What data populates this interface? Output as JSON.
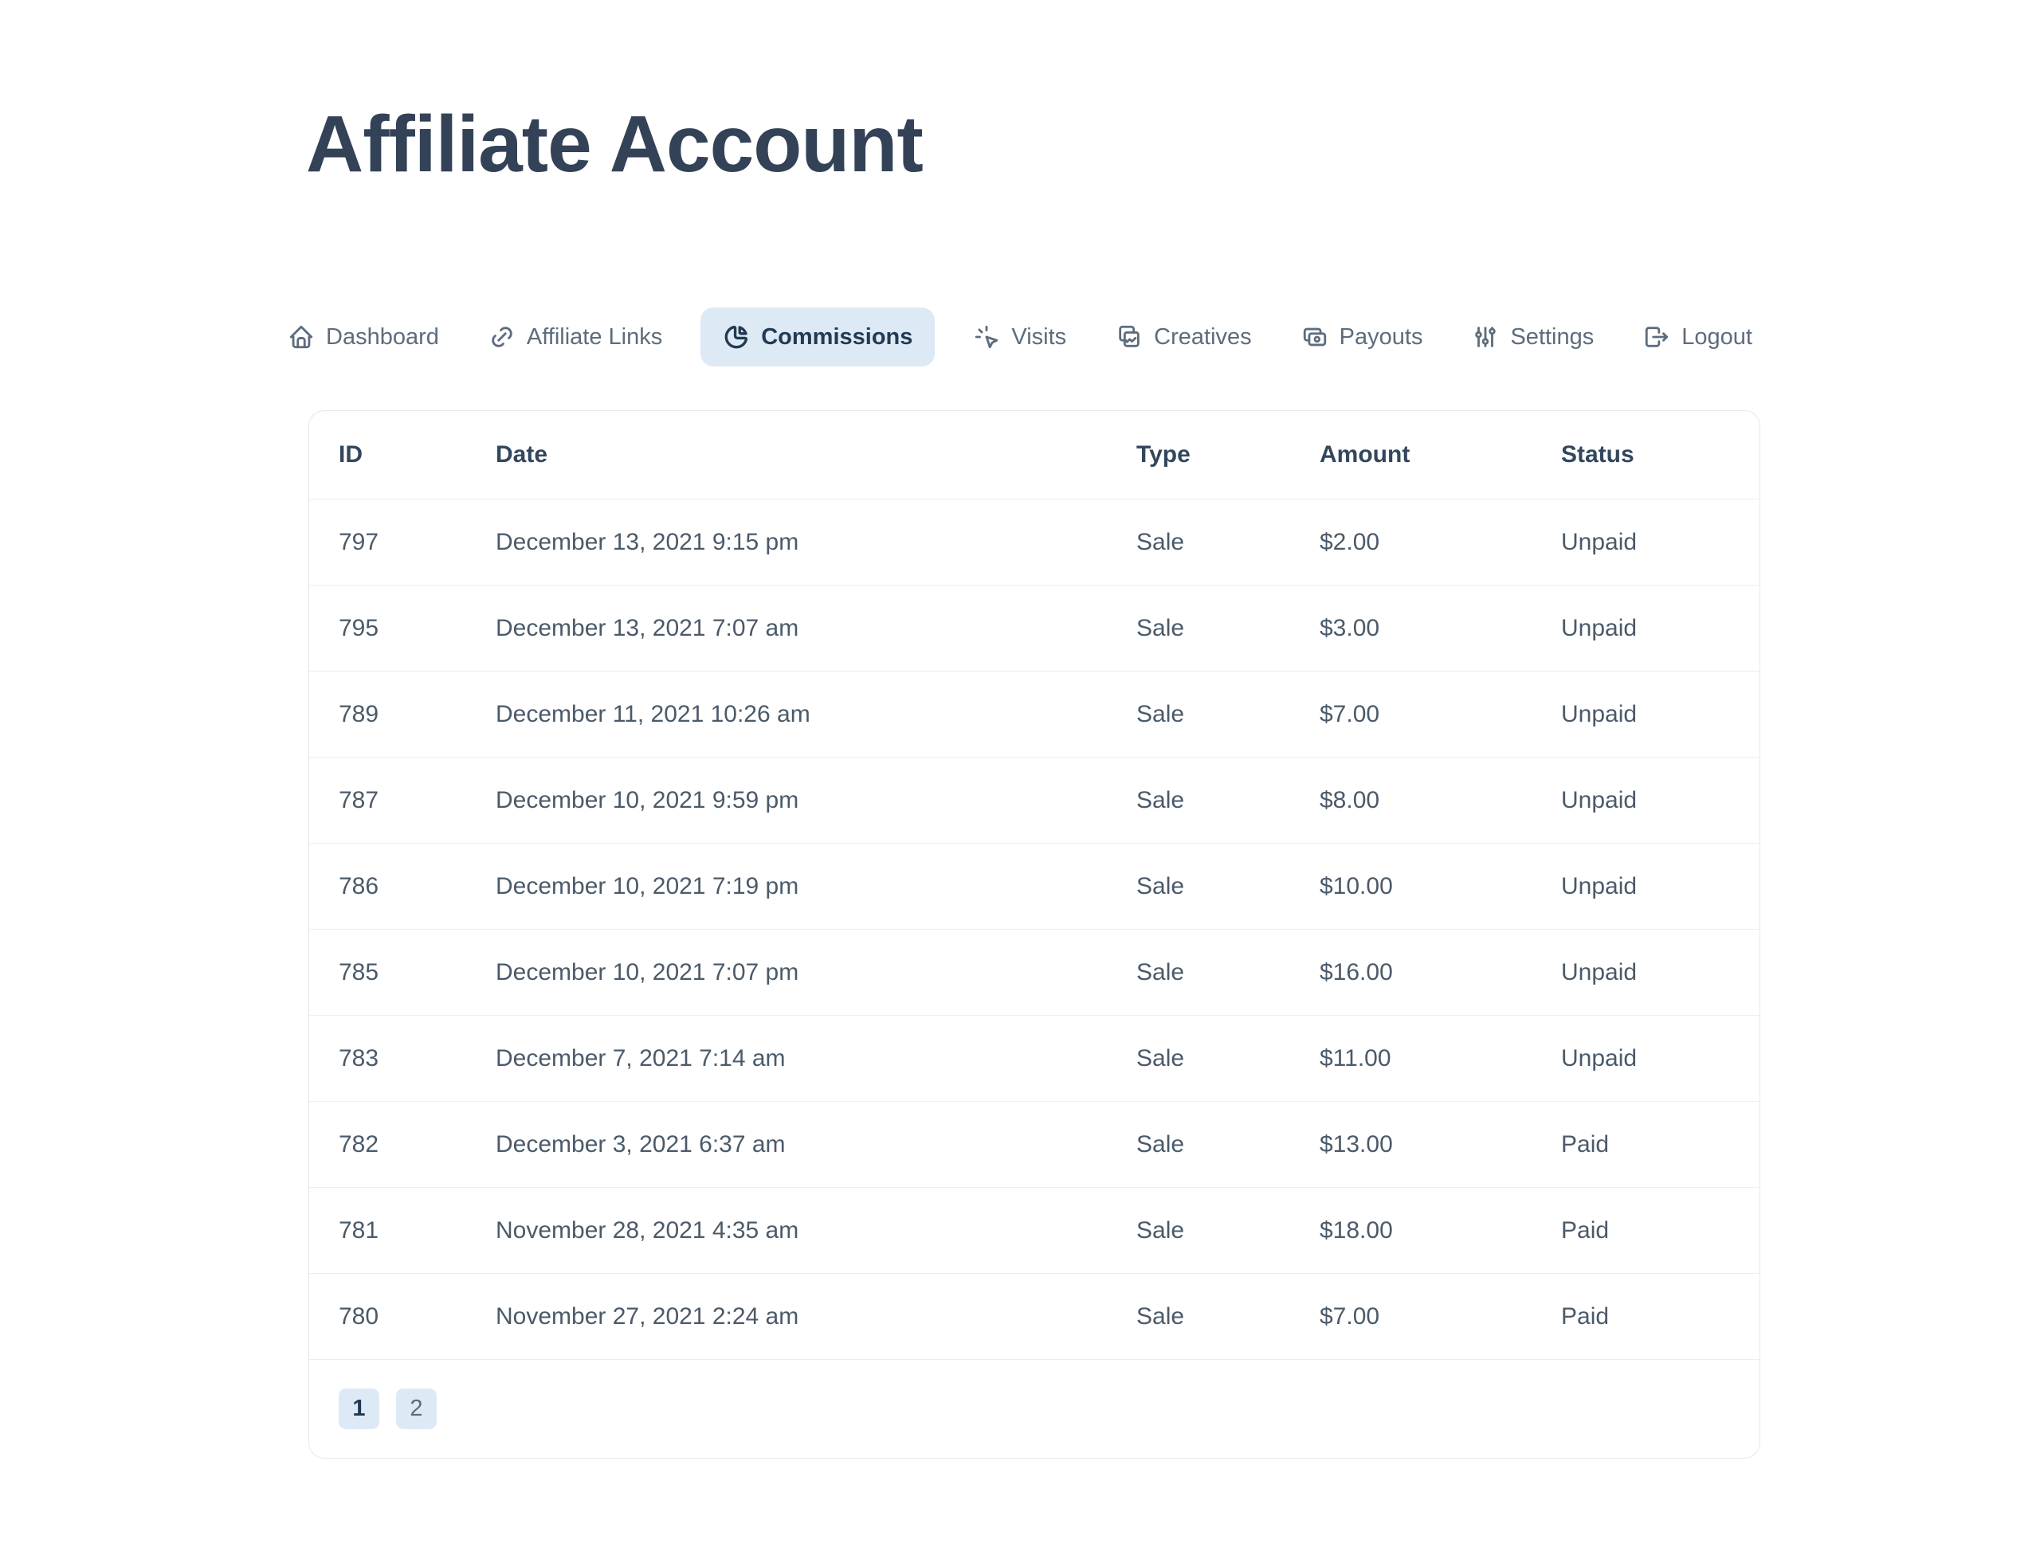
{
  "page": {
    "title": "Affiliate Account"
  },
  "nav": {
    "items": [
      {
        "slug": "dashboard",
        "label": "Dashboard",
        "icon": "home-icon",
        "active": false
      },
      {
        "slug": "affiliate-links",
        "label": "Affiliate Links",
        "icon": "link-icon",
        "active": false
      },
      {
        "slug": "commissions",
        "label": "Commissions",
        "icon": "chart-pie-icon",
        "active": true
      },
      {
        "slug": "visits",
        "label": "Visits",
        "icon": "cursor-click-icon",
        "active": false
      },
      {
        "slug": "creatives",
        "label": "Creatives",
        "icon": "images-icon",
        "active": false
      },
      {
        "slug": "payouts",
        "label": "Payouts",
        "icon": "cash-icon",
        "active": false
      },
      {
        "slug": "settings",
        "label": "Settings",
        "icon": "adjustments-icon",
        "active": false
      },
      {
        "slug": "logout",
        "label": "Logout",
        "icon": "logout-icon",
        "active": false
      }
    ]
  },
  "table": {
    "columns": [
      "ID",
      "Date",
      "Type",
      "Amount",
      "Status"
    ],
    "rows": [
      {
        "id": "797",
        "date": "December 13, 2021 9:15 pm",
        "type": "Sale",
        "amount": "$2.00",
        "status": "Unpaid"
      },
      {
        "id": "795",
        "date": "December 13, 2021 7:07 am",
        "type": "Sale",
        "amount": "$3.00",
        "status": "Unpaid"
      },
      {
        "id": "789",
        "date": "December 11, 2021 10:26 am",
        "type": "Sale",
        "amount": "$7.00",
        "status": "Unpaid"
      },
      {
        "id": "787",
        "date": "December 10, 2021 9:59 pm",
        "type": "Sale",
        "amount": "$8.00",
        "status": "Unpaid"
      },
      {
        "id": "786",
        "date": "December 10, 2021 7:19 pm",
        "type": "Sale",
        "amount": "$10.00",
        "status": "Unpaid"
      },
      {
        "id": "785",
        "date": "December 10, 2021 7:07 pm",
        "type": "Sale",
        "amount": "$16.00",
        "status": "Unpaid"
      },
      {
        "id": "783",
        "date": "December 7, 2021 7:14 am",
        "type": "Sale",
        "amount": "$11.00",
        "status": "Unpaid"
      },
      {
        "id": "782",
        "date": "December 3, 2021 6:37 am",
        "type": "Sale",
        "amount": "$13.00",
        "status": "Paid"
      },
      {
        "id": "781",
        "date": "November 28, 2021 4:35 am",
        "type": "Sale",
        "amount": "$18.00",
        "status": "Paid"
      },
      {
        "id": "780",
        "date": "November 27, 2021 2:24 am",
        "type": "Sale",
        "amount": "$7.00",
        "status": "Paid"
      }
    ]
  },
  "pagination": {
    "pages": [
      "1",
      "2"
    ],
    "current": "1"
  },
  "colors": {
    "title_text": "#334257",
    "nav_text": "#5d6c7c",
    "active_tab_bg": "#ddeaf6",
    "active_tab_text": "#223a52",
    "header_text": "#33475c",
    "cell_text": "#4b5a69",
    "card_border": "#e3e8ef",
    "row_border": "#eaeef3"
  }
}
